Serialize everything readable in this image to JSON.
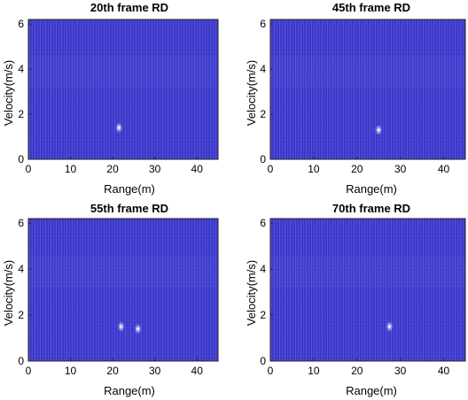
{
  "figure": {
    "background": "#ffffff",
    "colors": {
      "heatmap_base": "#3a37c8",
      "heatmap_stripe": "#4c4ad6",
      "heatmap_light": "#6d6ae4",
      "target_peak": "#e8ecff"
    }
  },
  "chart_data": [
    {
      "type": "heatmap",
      "title": "20th frame RD",
      "xlabel": "Range(m)",
      "ylabel": "Velocity(m/s)",
      "xlim": [
        0,
        45
      ],
      "ylim": [
        0,
        6.2
      ],
      "xticks": [
        "0",
        "10",
        "20",
        "30",
        "40"
      ],
      "yticks": [
        "0",
        "2",
        "4",
        "6"
      ],
      "grid": false,
      "targets": [
        {
          "range": 21.5,
          "velocity": 1.4
        }
      ]
    },
    {
      "type": "heatmap",
      "title": "45th frame RD",
      "xlabel": "Range(m)",
      "ylabel": "Velocity(m/s)",
      "xlim": [
        0,
        45
      ],
      "ylim": [
        0,
        6.2
      ],
      "xticks": [
        "0",
        "10",
        "20",
        "30",
        "40"
      ],
      "yticks": [
        "0",
        "2",
        "4",
        "6"
      ],
      "grid": false,
      "targets": [
        {
          "range": 25,
          "velocity": 1.3
        }
      ]
    },
    {
      "type": "heatmap",
      "title": "55th frame RD",
      "xlabel": "Range(m)",
      "ylabel": "Velocity(m/s)",
      "xlim": [
        0,
        45
      ],
      "ylim": [
        0,
        6.2
      ],
      "xticks": [
        "0",
        "10",
        "20",
        "30",
        "40"
      ],
      "yticks": [
        "0",
        "2",
        "4",
        "6"
      ],
      "grid": false,
      "targets": [
        {
          "range": 22,
          "velocity": 1.5
        },
        {
          "range": 26,
          "velocity": 1.4
        }
      ]
    },
    {
      "type": "heatmap",
      "title": "70th frame RD",
      "xlabel": "Range(m)",
      "ylabel": "Velocity(m/s)",
      "xlim": [
        0,
        45
      ],
      "ylim": [
        0,
        6.2
      ],
      "xticks": [
        "0",
        "10",
        "20",
        "30",
        "40"
      ],
      "yticks": [
        "0",
        "2",
        "4",
        "6"
      ],
      "grid": false,
      "targets": [
        {
          "range": 27.5,
          "velocity": 1.5
        }
      ]
    }
  ]
}
